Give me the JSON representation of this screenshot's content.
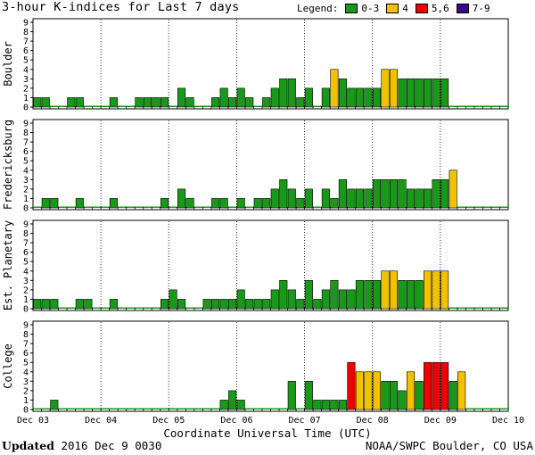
{
  "header": {
    "title": "3-hour K-indices for Last 7 days",
    "legend_label": "Legend:",
    "legend": [
      {
        "label": "0-3",
        "color": "#189a18"
      },
      {
        "label": "4",
        "color": "#f2c200"
      },
      {
        "label": "5,6",
        "color": "#ee0000"
      },
      {
        "label": "7-9",
        "color": "#3a0a8a"
      }
    ]
  },
  "chart_data": [
    {
      "type": "bar",
      "ylabel": "Boulder",
      "ylim": [
        0,
        9
      ],
      "yticks": [
        "0",
        "1",
        "2",
        "3",
        "4",
        "5",
        "6",
        "7",
        "8",
        "9"
      ],
      "x_ticks": [
        "Dec 03",
        "Dec 04",
        "Dec 05",
        "Dec 06",
        "Dec 07",
        "Dec 08",
        "Dec 09",
        "Dec 10"
      ],
      "values": [
        1,
        1,
        0,
        0,
        1,
        1,
        0,
        0,
        0,
        1,
        0,
        0,
        1,
        1,
        1,
        1,
        0,
        2,
        1,
        0,
        0,
        1,
        2,
        1,
        2,
        1,
        0,
        1,
        2,
        3,
        3,
        1,
        2,
        0,
        2,
        4,
        3,
        2,
        2,
        2,
        2,
        4,
        4,
        3,
        3,
        3,
        3,
        3,
        3,
        0,
        0,
        0,
        0,
        0,
        0,
        0
      ]
    },
    {
      "type": "bar",
      "ylabel": "Fredericksburg",
      "ylim": [
        0,
        9
      ],
      "yticks": [
        "0",
        "1",
        "2",
        "3",
        "4",
        "5",
        "6",
        "7",
        "8",
        "9"
      ],
      "x_ticks": [
        "Dec 03",
        "Dec 04",
        "Dec 05",
        "Dec 06",
        "Dec 07",
        "Dec 08",
        "Dec 09",
        "Dec 10"
      ],
      "values": [
        0,
        1,
        1,
        0,
        0,
        1,
        0,
        0,
        0,
        1,
        0,
        0,
        0,
        0,
        0,
        1,
        0,
        2,
        1,
        0,
        0,
        1,
        1,
        0,
        1,
        0,
        1,
        1,
        2,
        3,
        2,
        1,
        2,
        0,
        2,
        1,
        3,
        2,
        2,
        2,
        3,
        3,
        3,
        3,
        2,
        2,
        2,
        3,
        3,
        4,
        0,
        0,
        0,
        0,
        0,
        0
      ]
    },
    {
      "type": "bar",
      "ylabel": "Est. Planetary",
      "ylim": [
        0,
        9
      ],
      "yticks": [
        "0",
        "1",
        "2",
        "3",
        "4",
        "5",
        "6",
        "7",
        "8",
        "9"
      ],
      "x_ticks": [
        "Dec 03",
        "Dec 04",
        "Dec 05",
        "Dec 06",
        "Dec 07",
        "Dec 08",
        "Dec 09",
        "Dec 10"
      ],
      "values": [
        1,
        1,
        1,
        0,
        0,
        1,
        1,
        0,
        0,
        1,
        0,
        0,
        0,
        0,
        0,
        1,
        2,
        1,
        0,
        0,
        1,
        1,
        1,
        1,
        2,
        1,
        1,
        1,
        2,
        3,
        2,
        1,
        3,
        1,
        2,
        3,
        2,
        2,
        3,
        3,
        3,
        4,
        4,
        3,
        3,
        3,
        4,
        4,
        4,
        0,
        0,
        0,
        0,
        0,
        0,
        0
      ]
    },
    {
      "type": "bar",
      "ylabel": "College",
      "ylim": [
        0,
        9
      ],
      "yticks": [
        "0",
        "1",
        "2",
        "3",
        "4",
        "5",
        "6",
        "7",
        "8",
        "9"
      ],
      "x_ticks": [
        "Dec 03",
        "Dec 04",
        "Dec 05",
        "Dec 06",
        "Dec 07",
        "Dec 08",
        "Dec 09",
        "Dec 10"
      ],
      "values": [
        0,
        0,
        1,
        0,
        0,
        0,
        0,
        0,
        0,
        0,
        0,
        0,
        0,
        0,
        0,
        0,
        0,
        0,
        0,
        0,
        0,
        0,
        1,
        2,
        1,
        0,
        0,
        0,
        0,
        0,
        3,
        0,
        3,
        1,
        1,
        1,
        1,
        5,
        4,
        4,
        4,
        3,
        3,
        2,
        4,
        3,
        5,
        5,
        5,
        3,
        4,
        0,
        0,
        0,
        0,
        0
      ]
    }
  ],
  "footer": {
    "xlabel": "Coordinate Universal Time (UTC)",
    "updated_label": "Updated",
    "updated_value": " 2016 Dec  9 0030",
    "credit": "NOAA/SWPC Boulder, CO USA"
  }
}
